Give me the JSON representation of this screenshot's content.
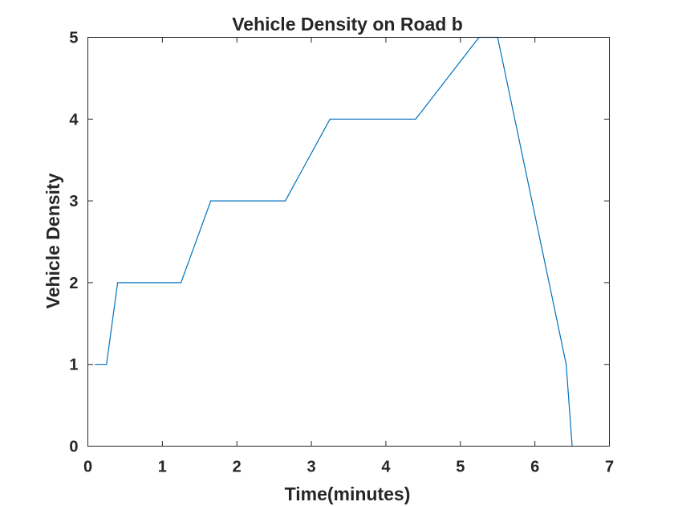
{
  "chart_data": {
    "type": "line",
    "title": "Vehicle Density on Road b",
    "xlabel": "Time(minutes)",
    "ylabel": "Vehicle Density",
    "xlim": [
      0,
      7
    ],
    "ylim": [
      0,
      5
    ],
    "xticks": [
      0,
      1,
      2,
      3,
      4,
      5,
      6,
      7
    ],
    "yticks": [
      0,
      1,
      2,
      3,
      4,
      5
    ],
    "grid": false,
    "series": [
      {
        "color": "#0072BD",
        "x": [
          0.1,
          0.25,
          0.4,
          1.25,
          1.65,
          2.65,
          3.25,
          4.4,
          5.25,
          5.5,
          6.42,
          6.5
        ],
        "y": [
          1,
          1,
          2,
          2,
          3,
          3,
          4,
          4,
          5,
          5,
          1,
          0
        ]
      }
    ]
  }
}
